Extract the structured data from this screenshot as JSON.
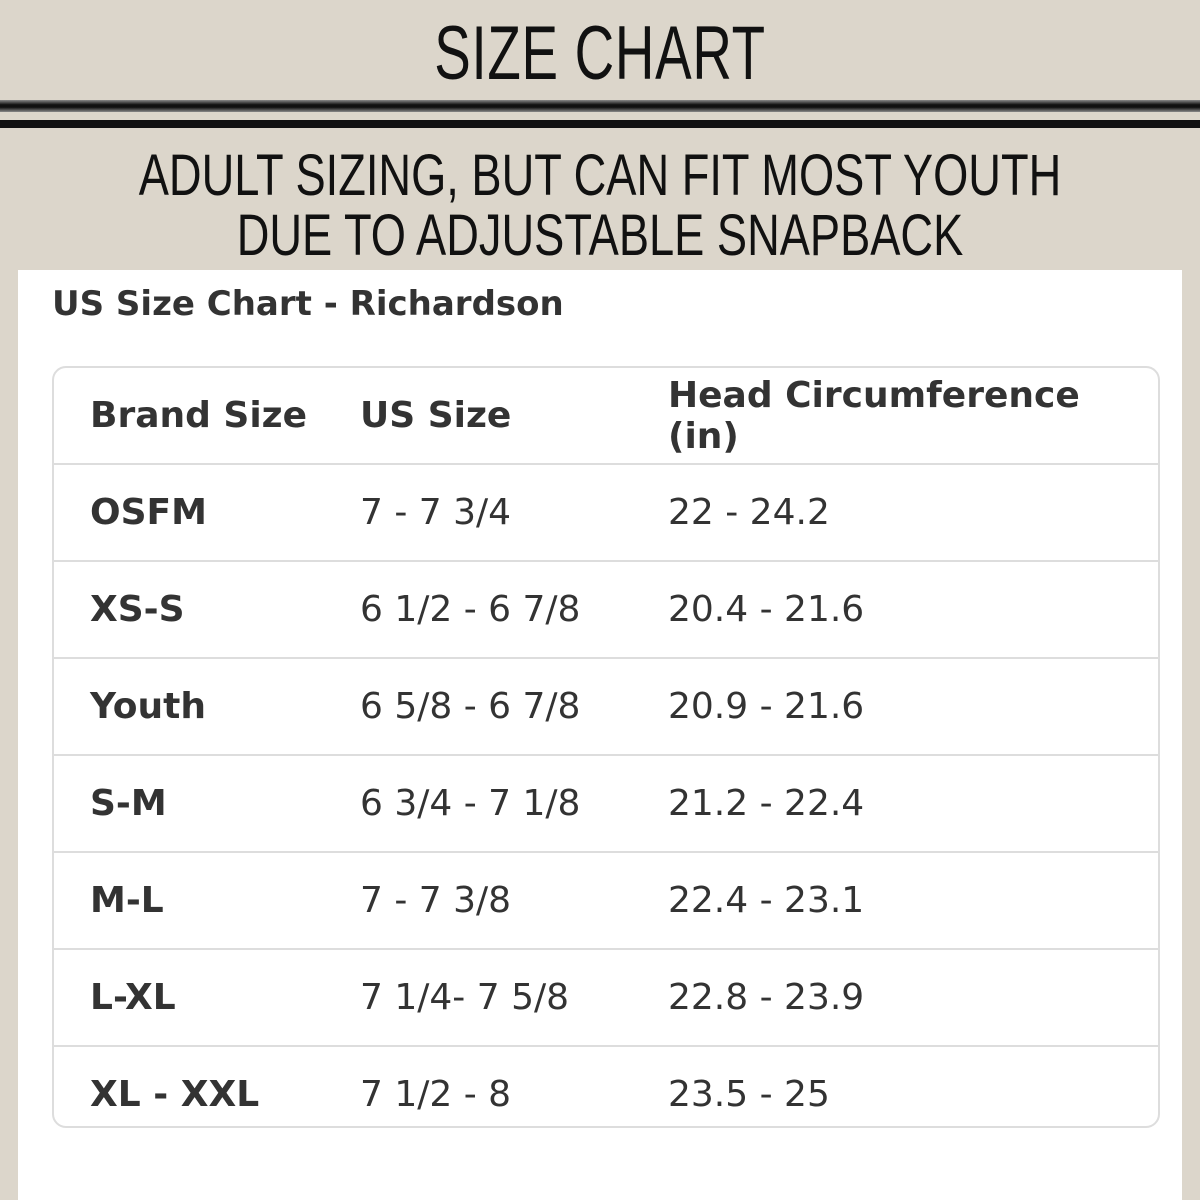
{
  "header": {
    "title": "SIZE CHART",
    "subtitle_lines": [
      "ADULT SIZING, BUT CAN FIT MOST YOUTH",
      "DUE TO ADJUSTABLE SNAPBACK"
    ]
  },
  "table": {
    "caption": "US Size Chart - Richardson",
    "columns": [
      "Brand Size",
      "US Size",
      "Head Circumference (in)"
    ],
    "rows": [
      [
        "OSFM",
        "7 - 7 3/4",
        "22 - 24.2"
      ],
      [
        "XS-S",
        "6 1/2 - 6 7/8",
        "20.4 - 21.6"
      ],
      [
        "Youth",
        "6 5/8 - 6 7/8",
        "20.9 - 21.6"
      ],
      [
        "S-M",
        "6 3/4 - 7 1/8",
        "21.2 - 22.4"
      ],
      [
        "M-L",
        "7 - 7 3/8",
        "22.4 - 23.1"
      ],
      [
        "L-XL",
        "7 1/4- 7 5/8",
        "22.8 - 23.9"
      ],
      [
        "XL - XXL",
        "7 1/2 - 8",
        "23.5 - 25"
      ]
    ]
  }
}
